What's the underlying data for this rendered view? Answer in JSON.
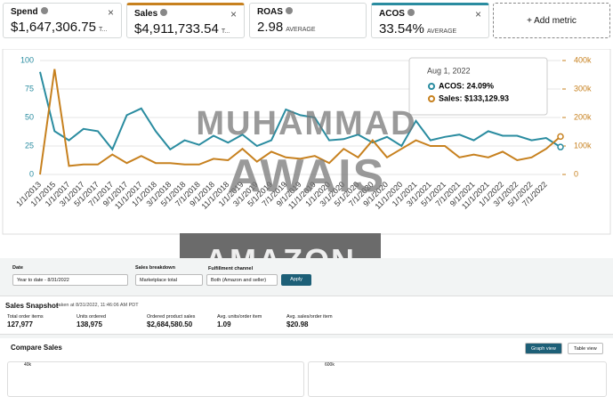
{
  "metrics": [
    {
      "label": "Spend",
      "value": "$1,647,306.75",
      "suffix": "T..."
    },
    {
      "label": "Sales",
      "value": "$4,911,733.54",
      "suffix": "T..."
    },
    {
      "label": "ROAS",
      "value": "2.98",
      "suffix": "AVERAGE"
    },
    {
      "label": "ACOS",
      "value": "33.54%",
      "suffix": "AVERAGE"
    }
  ],
  "add_metric": "+ Add metric",
  "chart_data": {
    "type": "line",
    "categories": [
      "1/1/2013",
      "1/1/2015",
      "1/1/2017",
      "3/1/2017",
      "5/1/2017",
      "7/1/2017",
      "9/1/2017",
      "11/1/2017",
      "1/1/2018",
      "3/1/2018",
      "5/1/2018",
      "7/1/2018",
      "9/1/2018",
      "11/1/2018",
      "1/1/2019",
      "3/1/2019",
      "5/1/2019",
      "7/1/2019",
      "9/1/2019",
      "11/1/2019",
      "1/1/2020",
      "3/1/2020",
      "5/1/2020",
      "7/1/2020",
      "9/1/2020",
      "11/1/2020",
      "1/1/2021",
      "3/1/2021",
      "5/1/2021",
      "7/1/2021",
      "9/1/2021",
      "11/1/2021",
      "1/1/2022",
      "3/1/2022",
      "5/1/2022",
      "7/1/2022",
      null
    ],
    "series": [
      {
        "name": "ACOS",
        "color": "#2a8ca0",
        "axis": "y",
        "values": [
          90,
          38,
          30,
          40,
          38,
          22,
          52,
          58,
          38,
          22,
          30,
          26,
          34,
          28,
          35,
          25,
          30,
          57,
          52,
          50,
          30,
          31,
          35,
          28,
          33,
          25,
          47,
          30,
          33,
          35,
          30,
          38,
          34,
          34,
          30,
          32,
          24.09
        ]
      },
      {
        "name": "Sales",
        "color": "#c7811f",
        "axis": "y2",
        "values": [
          0,
          370000,
          30000,
          35000,
          35000,
          70000,
          40000,
          65000,
          40000,
          40000,
          35000,
          35000,
          55000,
          50000,
          90000,
          45000,
          80000,
          60000,
          55000,
          65000,
          40000,
          90000,
          60000,
          120000,
          60000,
          90000,
          120000,
          100000,
          100000,
          60000,
          70000,
          60000,
          80000,
          50000,
          60000,
          90000,
          133129.93
        ]
      }
    ],
    "ylim": [
      0,
      100
    ],
    "yticks": [
      0,
      25,
      50,
      75,
      100
    ],
    "y2lim": [
      0,
      400000
    ],
    "y2ticks": [
      0,
      {
        "value": 100000,
        "label": "100k"
      },
      {
        "value": 200000,
        "label": "200k"
      },
      {
        "value": 300000,
        "label": "300k"
      },
      {
        "value": 400000,
        "label": "400k"
      }
    ],
    "grid": true,
    "tooltip": {
      "date": "Aug 1, 2022",
      "lines": [
        "ACOS: 24.09%",
        "Sales: $133,129.93"
      ]
    }
  },
  "watermark": [
    "MUHAMMAD",
    "AWAIS",
    "AMAZON VA"
  ],
  "filters": [
    {
      "label": "Date",
      "value": "Year to date - 8/31/2022"
    },
    {
      "label": "Sales breakdown",
      "value": "Marketplace total"
    },
    {
      "label": "Fulfillment channel",
      "value": "Both (Amazon and seller)"
    }
  ],
  "apply": "Apply",
  "snapshot": {
    "title": "Sales Snapshot",
    "taken": "taken at 8/31/2022, 11:46:06 AM PDT",
    "stats": [
      {
        "label": "Total order items",
        "value": "127,977"
      },
      {
        "label": "Units ordered",
        "value": "138,975"
      },
      {
        "label": "Ordered product sales",
        "value": "$2,684,580.50"
      },
      {
        "label": "Avg. units/order item",
        "value": "1.09"
      },
      {
        "label": "Avg. sales/order item",
        "value": "$20.98"
      }
    ]
  },
  "compare": {
    "title": "Compare Sales",
    "graph_view": "Graph view",
    "table_view": "Table view",
    "left_tick": "40k",
    "right_tick": "600k"
  }
}
